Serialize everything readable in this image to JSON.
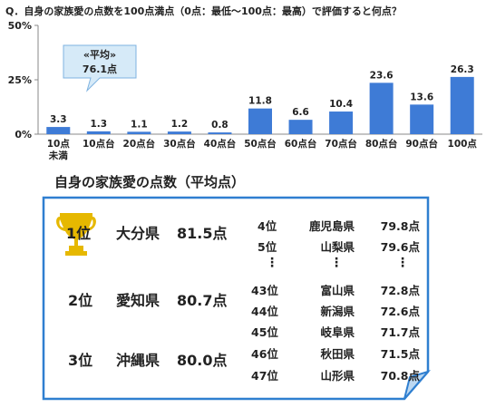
{
  "question": "Q．自身の家族愛の点数を100点満点（0点：最低～100点：最高）で評価すると何点？",
  "colors": {
    "bar": "#3e7bd6",
    "axis": "#888888",
    "grid": "#cccccc",
    "callout_bg": "#d6eaf8",
    "callout_border": "#7fb3e0",
    "box_border": "#2f7fd0",
    "trophy": "#e6b800"
  },
  "chart_data": {
    "type": "bar",
    "categories": [
      "10点未満",
      "10点台",
      "20点台",
      "30点台",
      "40点台",
      "50点台",
      "60点台",
      "70点台",
      "80点台",
      "90点台",
      "100点"
    ],
    "category_lines": [
      [
        "10点",
        "未満"
      ],
      [
        "10点台"
      ],
      [
        "20点台"
      ],
      [
        "30点台"
      ],
      [
        "40点台"
      ],
      [
        "50点台"
      ],
      [
        "60点台"
      ],
      [
        "70点台"
      ],
      [
        "80点台"
      ],
      [
        "90点台"
      ],
      [
        "100点"
      ]
    ],
    "values": [
      3.3,
      1.3,
      1.1,
      1.2,
      0.8,
      11.8,
      6.6,
      10.4,
      23.6,
      13.6,
      26.3
    ],
    "data_labels": [
      "3.3",
      "1.3",
      "1.1",
      "1.2",
      "0.8",
      "11.8",
      "6.6",
      "10.4",
      "23.6",
      "13.6",
      "26.3"
    ],
    "yticks": [
      "0%",
      "25%",
      "50%"
    ],
    "ytick_values": [
      0,
      25,
      50
    ],
    "ylim": [
      0,
      50
    ],
    "grid": false,
    "callout": {
      "label": "«平均»",
      "value": "76.1点"
    }
  },
  "ranking": {
    "title": "自身の家族愛の点数（平均点）",
    "top3": [
      {
        "rank": "1位",
        "pref": "大分県",
        "score": "81.5点"
      },
      {
        "rank": "2位",
        "pref": "愛知県",
        "score": "80.7点"
      },
      {
        "rank": "3位",
        "pref": "沖縄県",
        "score": "80.0点"
      }
    ],
    "upper": [
      {
        "rank": "4位",
        "pref": "鹿児島県",
        "score": "79.8点"
      },
      {
        "rank": "5位",
        "pref": "山梨県",
        "score": "79.6点"
      }
    ],
    "ellipsis": "⋮",
    "lower": [
      {
        "rank": "43位",
        "pref": "富山県",
        "score": "72.8点"
      },
      {
        "rank": "44位",
        "pref": "新潟県",
        "score": "72.6点"
      },
      {
        "rank": "45位",
        "pref": "岐阜県",
        "score": "71.7点"
      },
      {
        "rank": "46位",
        "pref": "秋田県",
        "score": "71.5点"
      },
      {
        "rank": "47位",
        "pref": "山形県",
        "score": "70.8点"
      }
    ]
  }
}
